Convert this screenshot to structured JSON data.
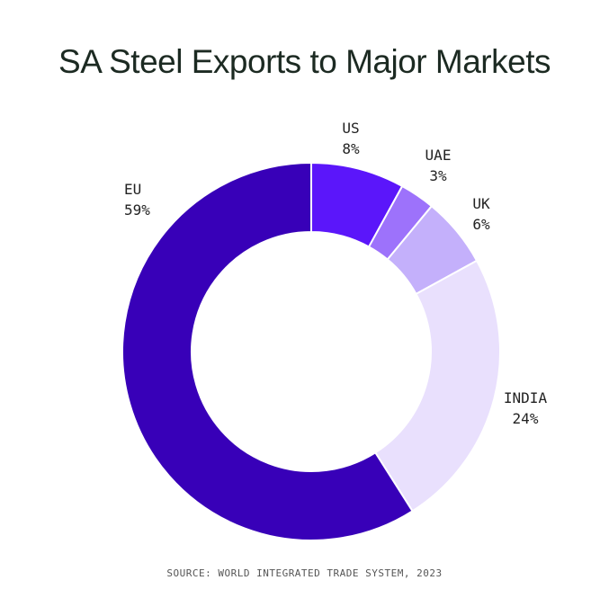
{
  "chart_data": {
    "type": "pie",
    "variant": "donut",
    "title": "SA Steel Exports to Major Markets",
    "categories": [
      "US",
      "UAE",
      "UK",
      "INDIA",
      "EU"
    ],
    "values": [
      8,
      3,
      6,
      24,
      59
    ],
    "value_labels": [
      "8%",
      "3%",
      "6%",
      "24%",
      "59%"
    ],
    "colors": [
      "#5b16fa",
      "#9d72fb",
      "#c4b0fb",
      "#e9e0fd",
      "#3800b8"
    ],
    "start": "top",
    "direction": "clockwise",
    "legend": "none",
    "source": "SOURCE: WORLD INTEGRATED TRADE SYSTEM, 2023"
  }
}
